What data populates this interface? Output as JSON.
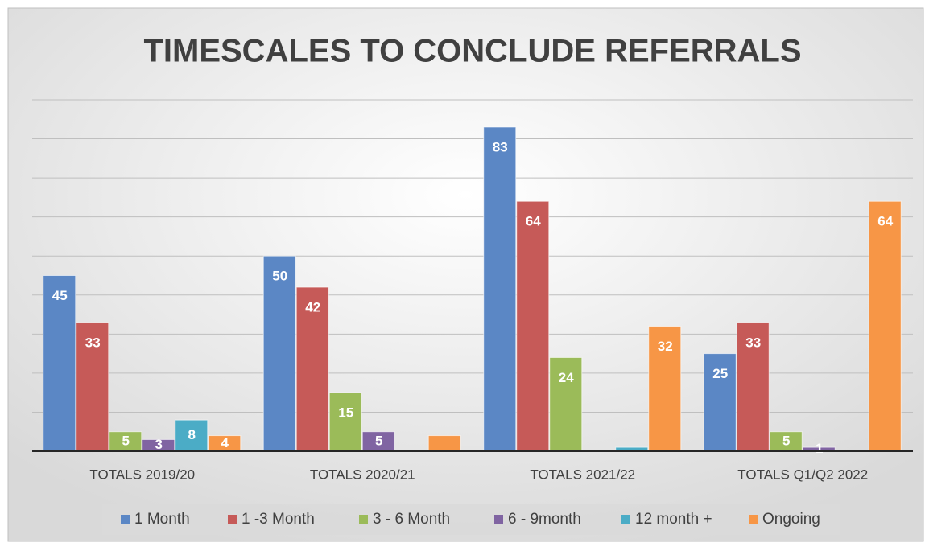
{
  "chart_data": {
    "type": "bar",
    "title": "TIMESCALES TO CONCLUDE REFERRALS",
    "categories": [
      "TOTALS 2019/20",
      "TOTALS 2020/21",
      "TOTALS 2021/22",
      "TOTALS Q1/Q2 2022"
    ],
    "series": [
      {
        "name": "1 Month",
        "color": "#5b87c5",
        "values": [
          45,
          50,
          83,
          25
        ]
      },
      {
        "name": "1 -3 Month",
        "color": "#c65a58",
        "values": [
          33,
          42,
          64,
          33
        ]
      },
      {
        "name": "3 - 6 Month",
        "color": "#9bbb59",
        "values": [
          5,
          15,
          24,
          5
        ]
      },
      {
        "name": "6 - 9month",
        "color": "#8064a2",
        "values": [
          3,
          5,
          0,
          1
        ]
      },
      {
        "name": "12 month +",
        "color": "#4bacc6",
        "values": [
          8,
          0,
          1,
          0
        ],
        "value_labels": [
          "8",
          null,
          null,
          null
        ]
      },
      {
        "name": "Ongoing",
        "color": "#f79646",
        "values": [
          4,
          4,
          32,
          64
        ],
        "value_labels": [
          "4",
          null,
          "32",
          "64"
        ]
      }
    ],
    "ylim": [
      0,
      90
    ],
    "yticks": [
      0,
      10,
      20,
      30,
      40,
      50,
      60,
      70,
      80,
      90
    ],
    "grid": true,
    "legend": "bottom"
  }
}
